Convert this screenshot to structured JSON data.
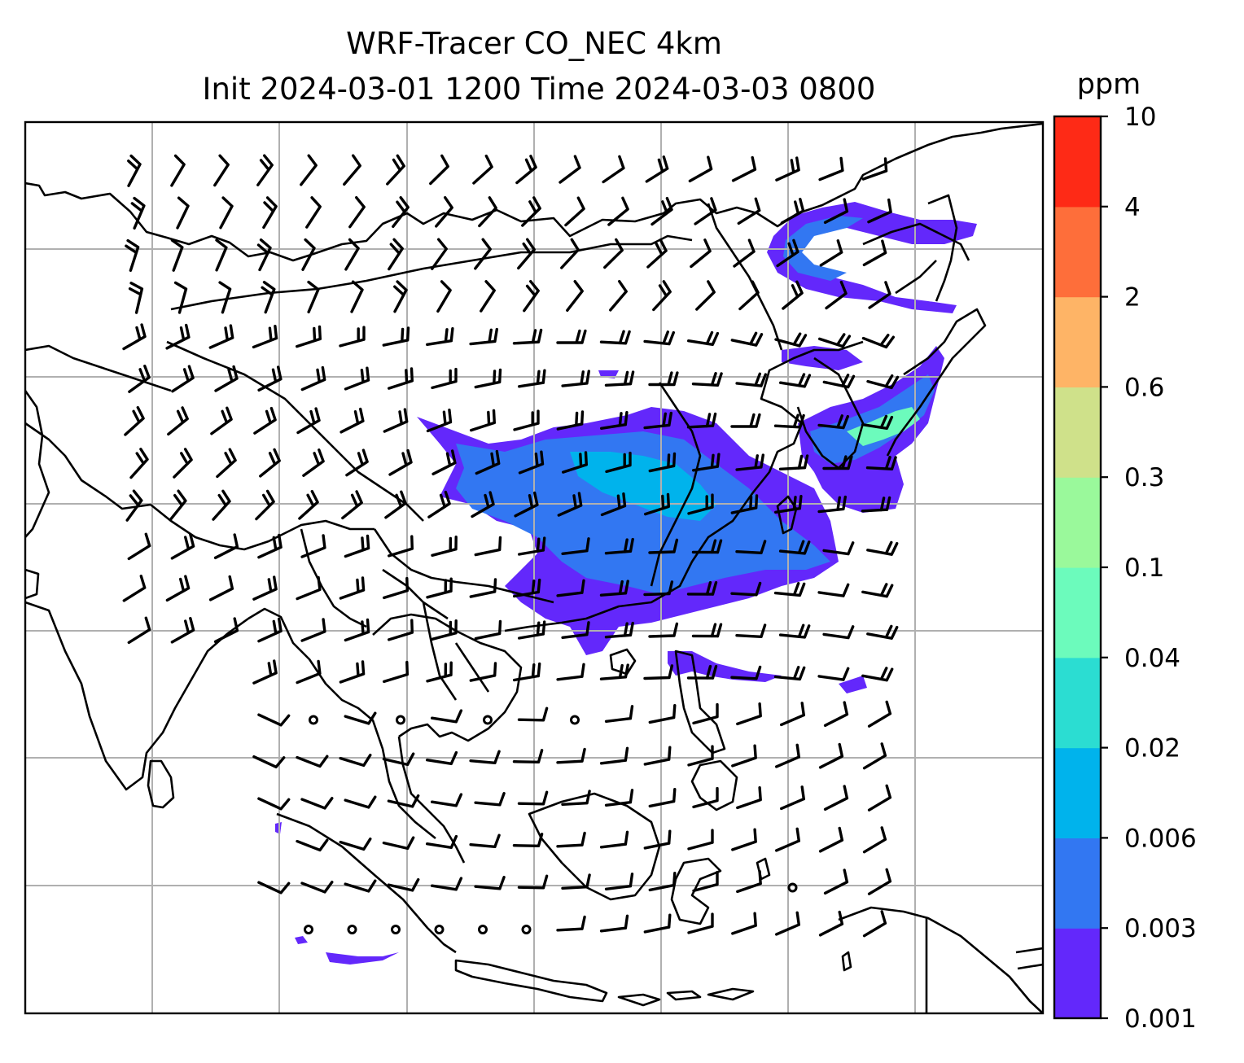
{
  "title": {
    "line1": "WRF-Tracer CO_NEC 4km",
    "line2": "Init 2024-03-01 1200 Time 2024-03-03 0800"
  },
  "colorbar": {
    "unit": "ppm",
    "levels": [
      "0.001",
      "0.003",
      "0.006",
      "0.02",
      "0.04",
      "0.1",
      "0.3",
      "0.6",
      "2",
      "4",
      "10"
    ],
    "colors": [
      "#6328FB",
      "#3277F2",
      "#00B3EC",
      "#2BDDD2",
      "#6CFBBC",
      "#9AF99B",
      "#CFE18A",
      "#FEB466",
      "#FE6E3A",
      "#FE2A16"
    ]
  },
  "map": {
    "gridlines": true,
    "grid_color": "#b0b0b0",
    "coastline_color": "#000000",
    "features": [
      "coastlines",
      "country-borders",
      "wind-barbs",
      "co-tracer-concentration"
    ],
    "plume_colors": {
      "low": "#6328FB",
      "medium": "#3277F2",
      "high": "#00B3EC",
      "peak": "#6CFBBC"
    }
  }
}
